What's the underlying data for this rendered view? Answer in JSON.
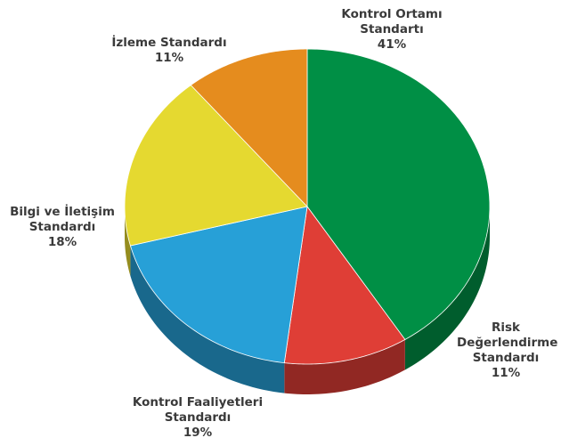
{
  "chart_data": {
    "type": "pie",
    "categories": [
      "Kontrol Ortamı Standartı",
      "Risk Değerlendirme Standardı",
      "Kontrol Faaliyetleri Standardı",
      "Bilgi ve İletişim Standardı",
      "İzleme Standardı"
    ],
    "values": [
      41,
      11,
      19,
      18,
      11
    ],
    "value_labels": [
      "41%",
      "11%",
      "19%",
      "18%",
      "11%"
    ],
    "colors": [
      "#008f45",
      "#df3e36",
      "#27a0d7",
      "#e5d930",
      "#e58c1e"
    ]
  }
}
